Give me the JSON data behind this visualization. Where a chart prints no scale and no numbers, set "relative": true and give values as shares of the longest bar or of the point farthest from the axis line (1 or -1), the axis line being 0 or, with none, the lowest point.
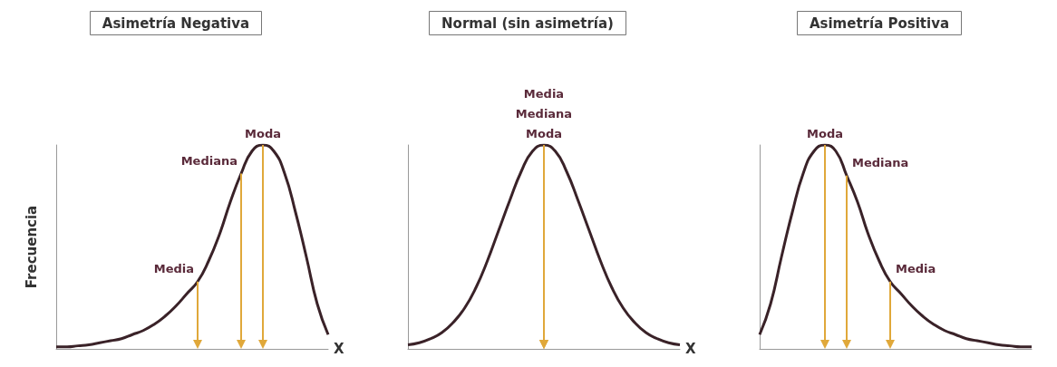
{
  "chart_data": [
    {
      "type": "line",
      "title": "Asimetría Negativa",
      "xlabel": "X",
      "ylabel": "Frecuencia",
      "relative": true,
      "marker": "none",
      "categories": [
        null,
        null,
        null,
        null,
        null,
        null,
        null,
        null,
        null,
        null,
        null,
        null,
        null,
        null,
        null,
        null,
        null,
        null,
        null,
        null,
        null,
        null,
        null,
        null,
        null,
        null
      ],
      "series": [
        {
          "color": "#3a2228",
          "values": [
            0.01,
            0.01,
            0.015,
            0.02,
            0.03,
            0.04,
            0.05,
            0.07,
            0.09,
            0.12,
            0.16,
            0.21,
            0.27,
            0.33,
            0.43,
            0.56,
            0.72,
            0.86,
            0.97,
            1.0,
            0.97,
            0.86,
            0.67,
            0.45,
            0.22,
            0.07
          ]
        }
      ],
      "annotations": [
        "Media",
        "Mediana",
        "Moda"
      ]
    },
    {
      "type": "line",
      "title": "Normal (sin asimetría)",
      "xlabel": "X",
      "relative": true,
      "marker": "none",
      "categories": [
        null,
        null,
        null,
        null,
        null,
        null,
        null,
        null,
        null,
        null,
        null,
        null,
        null,
        null,
        null,
        null,
        null,
        null,
        null,
        null,
        null,
        null,
        null,
        null,
        null
      ],
      "series": [
        {
          "color": "#3a2228",
          "values": [
            0.02,
            0.03,
            0.05,
            0.08,
            0.13,
            0.2,
            0.3,
            0.43,
            0.58,
            0.73,
            0.87,
            0.97,
            1.0,
            0.97,
            0.87,
            0.73,
            0.58,
            0.43,
            0.3,
            0.2,
            0.13,
            0.08,
            0.05,
            0.03,
            0.02
          ]
        }
      ],
      "annotations": [
        "Media",
        "Mediana",
        "Moda"
      ]
    },
    {
      "type": "line",
      "title": "Asimetría Positiva",
      "relative": true,
      "marker": "none",
      "categories": [
        null,
        null,
        null,
        null,
        null,
        null,
        null,
        null,
        null,
        null,
        null,
        null,
        null,
        null,
        null,
        null,
        null,
        null,
        null,
        null,
        null,
        null,
        null,
        null,
        null,
        null
      ],
      "series": [
        {
          "color": "#3a2228",
          "values": [
            0.07,
            0.22,
            0.45,
            0.67,
            0.86,
            0.97,
            1.0,
            0.97,
            0.85,
            0.72,
            0.56,
            0.43,
            0.33,
            0.27,
            0.21,
            0.16,
            0.12,
            0.09,
            0.07,
            0.05,
            0.04,
            0.03,
            0.02,
            0.015,
            0.01,
            0.01
          ]
        }
      ],
      "annotations": [
        "Moda",
        "Mediana",
        "Media"
      ]
    }
  ]
}
